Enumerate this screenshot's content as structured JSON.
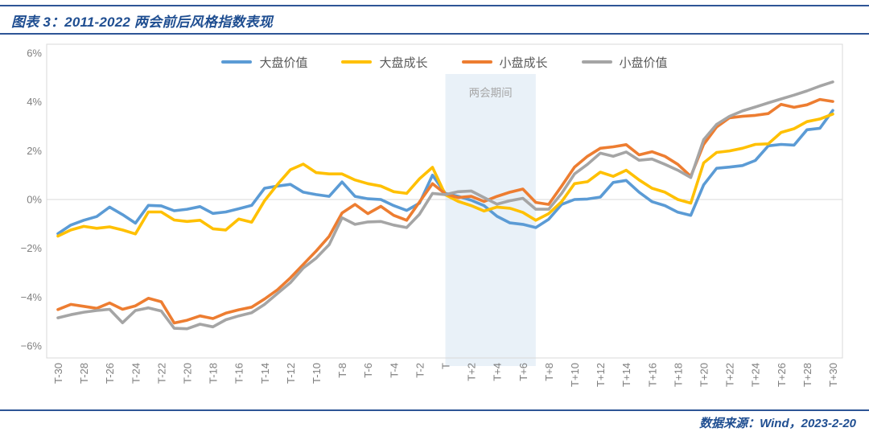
{
  "header": {
    "title": "图表 3：2011-2022 两会前后风格指数表现"
  },
  "footer": {
    "source": "数据来源：Wind，2023-2-20"
  },
  "colors": {
    "accent_rule": "#2e5596",
    "title_text": "#1f4e91",
    "axis_text": "#7f7f7f",
    "legend_text": "#595959",
    "grid_line": "#d9d9d9",
    "plot_border": "#d9d9d9",
    "band_fill": "#e9f1f8",
    "band_label_text": "#a6a6a6"
  },
  "chart_data": {
    "type": "line",
    "title": "",
    "xlabel": "",
    "ylabel": "",
    "xlim": [
      -30,
      30
    ],
    "ylim": [
      -6.5,
      6.4
    ],
    "grid": "horizontal-zero-only",
    "legend_position": "top-center",
    "x": [
      -30,
      -29,
      -28,
      -27,
      -26,
      -25,
      -24,
      -23,
      -22,
      -21,
      -20,
      -19,
      -18,
      -17,
      -16,
      -15,
      -14,
      -13,
      -12,
      -11,
      -10,
      -9,
      -8,
      -7,
      -6,
      -5,
      -4,
      -3,
      -2,
      -1,
      0,
      1,
      2,
      3,
      4,
      5,
      6,
      7,
      8,
      9,
      10,
      11,
      12,
      13,
      14,
      15,
      16,
      17,
      18,
      19,
      20,
      21,
      22,
      23,
      24,
      25,
      26,
      27,
      28,
      29,
      30
    ],
    "x_tick_values": [
      -30,
      -28,
      -26,
      -24,
      -22,
      -20,
      -18,
      -16,
      -14,
      -12,
      -10,
      -8,
      -6,
      -4,
      -2,
      0,
      2,
      4,
      6,
      8,
      10,
      12,
      14,
      16,
      18,
      20,
      22,
      24,
      26,
      28,
      30
    ],
    "x_tick_labels": [
      "T-30",
      "T-28",
      "T-26",
      "T-24",
      "T-22",
      "T-20",
      "T-18",
      "T-16",
      "T-14",
      "T-12",
      "T-10",
      "T-8",
      "T-6",
      "T-4",
      "T-2",
      "T",
      "T+2",
      "T+4",
      "T+6",
      "T+8",
      "T+10",
      "T+12",
      "T+14",
      "T+16",
      "T+18",
      "T+20",
      "T+22",
      "T+24",
      "T+26",
      "T+28",
      "T+30"
    ],
    "y_tick_values": [
      6,
      4,
      2,
      0,
      -2,
      -4,
      -6
    ],
    "y_tick_labels": [
      "6%",
      "4%",
      "2%",
      "0%",
      "−2%",
      "−4%",
      "−6%"
    ],
    "band": {
      "label": "两会期间",
      "from_t": 0,
      "to_t": 7
    },
    "series": [
      {
        "name": "大盘价值",
        "color": "#5b9bd5",
        "values": [
          -1.4,
          -1.05,
          -0.85,
          -0.7,
          -0.31,
          -0.62,
          -0.97,
          -0.24,
          -0.26,
          -0.46,
          -0.4,
          -0.29,
          -0.57,
          -0.51,
          -0.38,
          -0.24,
          0.46,
          0.55,
          0.62,
          0.3,
          0.2,
          0.13,
          0.72,
          0.13,
          0.03,
          0.0,
          -0.25,
          -0.45,
          -0.15,
          1.0,
          0.25,
          0.13,
          -0.03,
          -0.25,
          -0.69,
          -0.96,
          -1.02,
          -1.15,
          -0.81,
          -0.2,
          0.0,
          0.02,
          0.1,
          0.7,
          0.78,
          0.3,
          -0.09,
          -0.25,
          -0.52,
          -0.65,
          0.6,
          1.28,
          1.33,
          1.39,
          1.6,
          2.2,
          2.26,
          2.23,
          2.86,
          2.92,
          3.65
        ]
      },
      {
        "name": "大盘成长",
        "color": "#ffc000",
        "values": [
          -1.5,
          -1.25,
          -1.1,
          -1.18,
          -1.12,
          -1.25,
          -1.41,
          -0.51,
          -0.51,
          -0.84,
          -0.9,
          -0.85,
          -1.2,
          -1.25,
          -0.8,
          -0.93,
          -0.05,
          0.62,
          1.22,
          1.45,
          1.1,
          1.05,
          1.05,
          0.8,
          0.65,
          0.55,
          0.32,
          0.25,
          0.85,
          1.32,
          0.19,
          -0.08,
          -0.25,
          -0.47,
          -0.31,
          -0.36,
          -0.53,
          -0.85,
          -0.58,
          -0.09,
          0.65,
          0.73,
          1.12,
          0.95,
          1.2,
          0.8,
          0.46,
          0.3,
          0.0,
          -0.15,
          1.5,
          1.93,
          1.99,
          2.1,
          2.26,
          2.28,
          2.75,
          2.9,
          3.19,
          3.3,
          3.5
        ]
      },
      {
        "name": "小盘成长",
        "color": "#ed7d31",
        "values": [
          -4.51,
          -4.3,
          -4.38,
          -4.46,
          -4.24,
          -4.5,
          -4.36,
          -4.05,
          -4.19,
          -5.06,
          -4.95,
          -4.77,
          -4.88,
          -4.66,
          -4.52,
          -4.41,
          -4.08,
          -3.7,
          -3.21,
          -2.66,
          -2.11,
          -1.51,
          -0.55,
          -0.2,
          -0.58,
          -0.28,
          -0.65,
          -0.85,
          -0.1,
          0.65,
          0.23,
          0.08,
          0.13,
          -0.08,
          0.13,
          0.3,
          0.43,
          -0.12,
          -0.2,
          0.55,
          1.33,
          1.77,
          2.1,
          2.16,
          2.25,
          1.83,
          1.96,
          1.77,
          1.44,
          0.95,
          2.26,
          2.97,
          3.35,
          3.41,
          3.45,
          3.52,
          3.9,
          3.78,
          3.88,
          4.1,
          4.02
        ]
      },
      {
        "name": "小盘价值",
        "color": "#a5a5a5",
        "values": [
          -4.85,
          -4.72,
          -4.62,
          -4.55,
          -4.5,
          -5.05,
          -4.55,
          -4.44,
          -4.57,
          -5.28,
          -5.3,
          -5.11,
          -5.22,
          -4.93,
          -4.77,
          -4.64,
          -4.3,
          -3.85,
          -3.41,
          -2.81,
          -2.4,
          -1.85,
          -0.75,
          -1.02,
          -0.92,
          -0.9,
          -1.05,
          -1.15,
          -0.6,
          0.25,
          0.2,
          0.32,
          0.35,
          0.08,
          -0.19,
          -0.05,
          0.05,
          -0.4,
          -0.4,
          0.25,
          1.05,
          1.44,
          1.9,
          1.77,
          1.95,
          1.61,
          1.66,
          1.44,
          1.2,
          0.9,
          2.45,
          3.08,
          3.41,
          3.63,
          3.79,
          3.96,
          4.12,
          4.28,
          4.45,
          4.65,
          4.82
        ]
      }
    ]
  }
}
